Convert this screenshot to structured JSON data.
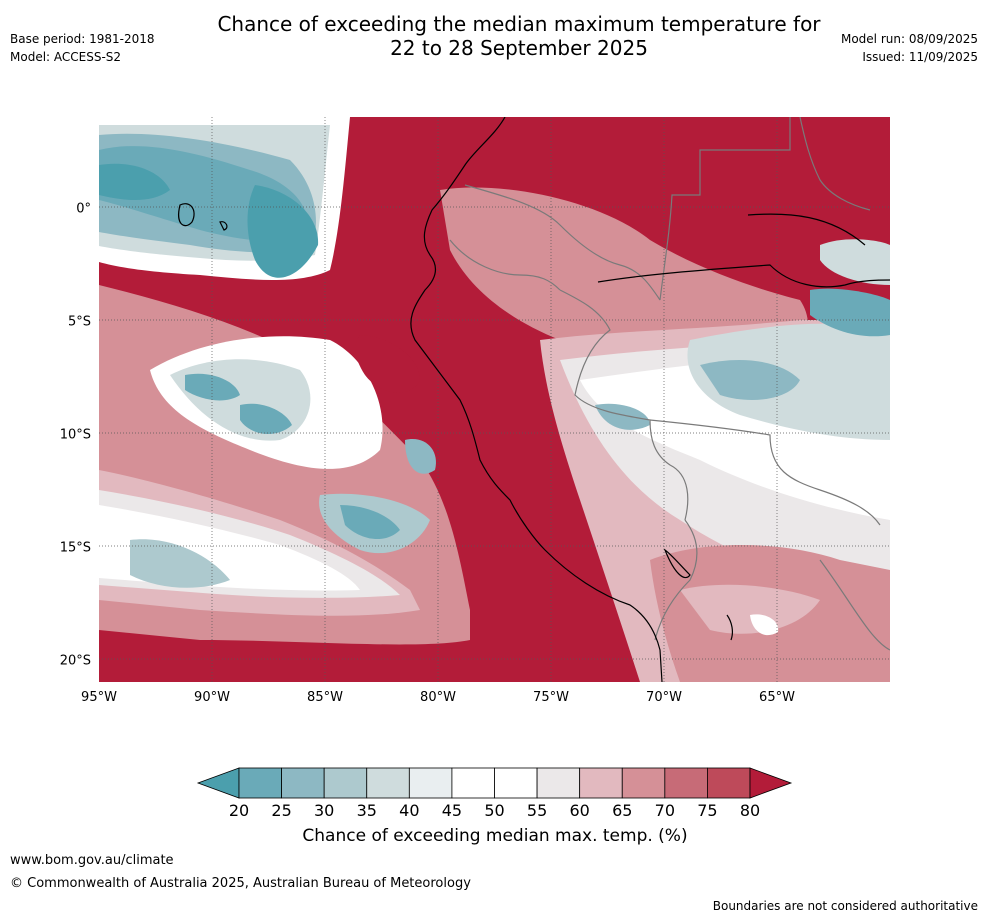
{
  "header": {
    "title_line1": "Chance of exceeding the median maximum temperature for",
    "title_line2": "22 to 28 September 2025",
    "base_period": "Base period: 1981-2018",
    "model": "Model: ACCESS-S2",
    "model_run": "Model run: 08/09/2025",
    "issued": "Issued: 11/09/2025"
  },
  "map": {
    "x_ticks": [
      {
        "lon": -95,
        "label": "95°W"
      },
      {
        "lon": -90,
        "label": "90°W"
      },
      {
        "lon": -85,
        "label": "85°W"
      },
      {
        "lon": -80,
        "label": "80°W"
      },
      {
        "lon": -75,
        "label": "75°W"
      },
      {
        "lon": -70,
        "label": "70°W"
      },
      {
        "lon": -65,
        "label": "65°W"
      }
    ],
    "y_ticks": [
      {
        "lat": 0,
        "label": "0°"
      },
      {
        "lat": -5,
        "label": "5°S"
      },
      {
        "lat": -10,
        "label": "10°S"
      },
      {
        "lat": -15,
        "label": "15°S"
      },
      {
        "lat": -20,
        "label": "20°S"
      }
    ],
    "lon_range": [
      -95,
      -60
    ],
    "lat_range": [
      -21,
      4
    ],
    "gridlines": true
  },
  "colorbar": {
    "levels": [
      "20",
      "25",
      "30",
      "35",
      "40",
      "45",
      "50",
      "55",
      "60",
      "65",
      "70",
      "75",
      "80"
    ],
    "colors": [
      "#4b9fad",
      "#6aaab8",
      "#8db8c3",
      "#adc9ce",
      "#cfdcdd",
      "#e9eef0",
      "#ffffff",
      "#ffffff",
      "#ebe8e9",
      "#e2b9bf",
      "#d59097",
      "#c76b77",
      "#be4a5a",
      "#b31c39"
    ],
    "label": "Chance of exceeding median max. temp. (%)"
  },
  "footer": {
    "url": "www.bom.gov.au/climate",
    "copyright": "© Commonwealth of Australia 2025, Australian Bureau of Meteorology",
    "note": "Boundaries are not considered authoritative"
  }
}
